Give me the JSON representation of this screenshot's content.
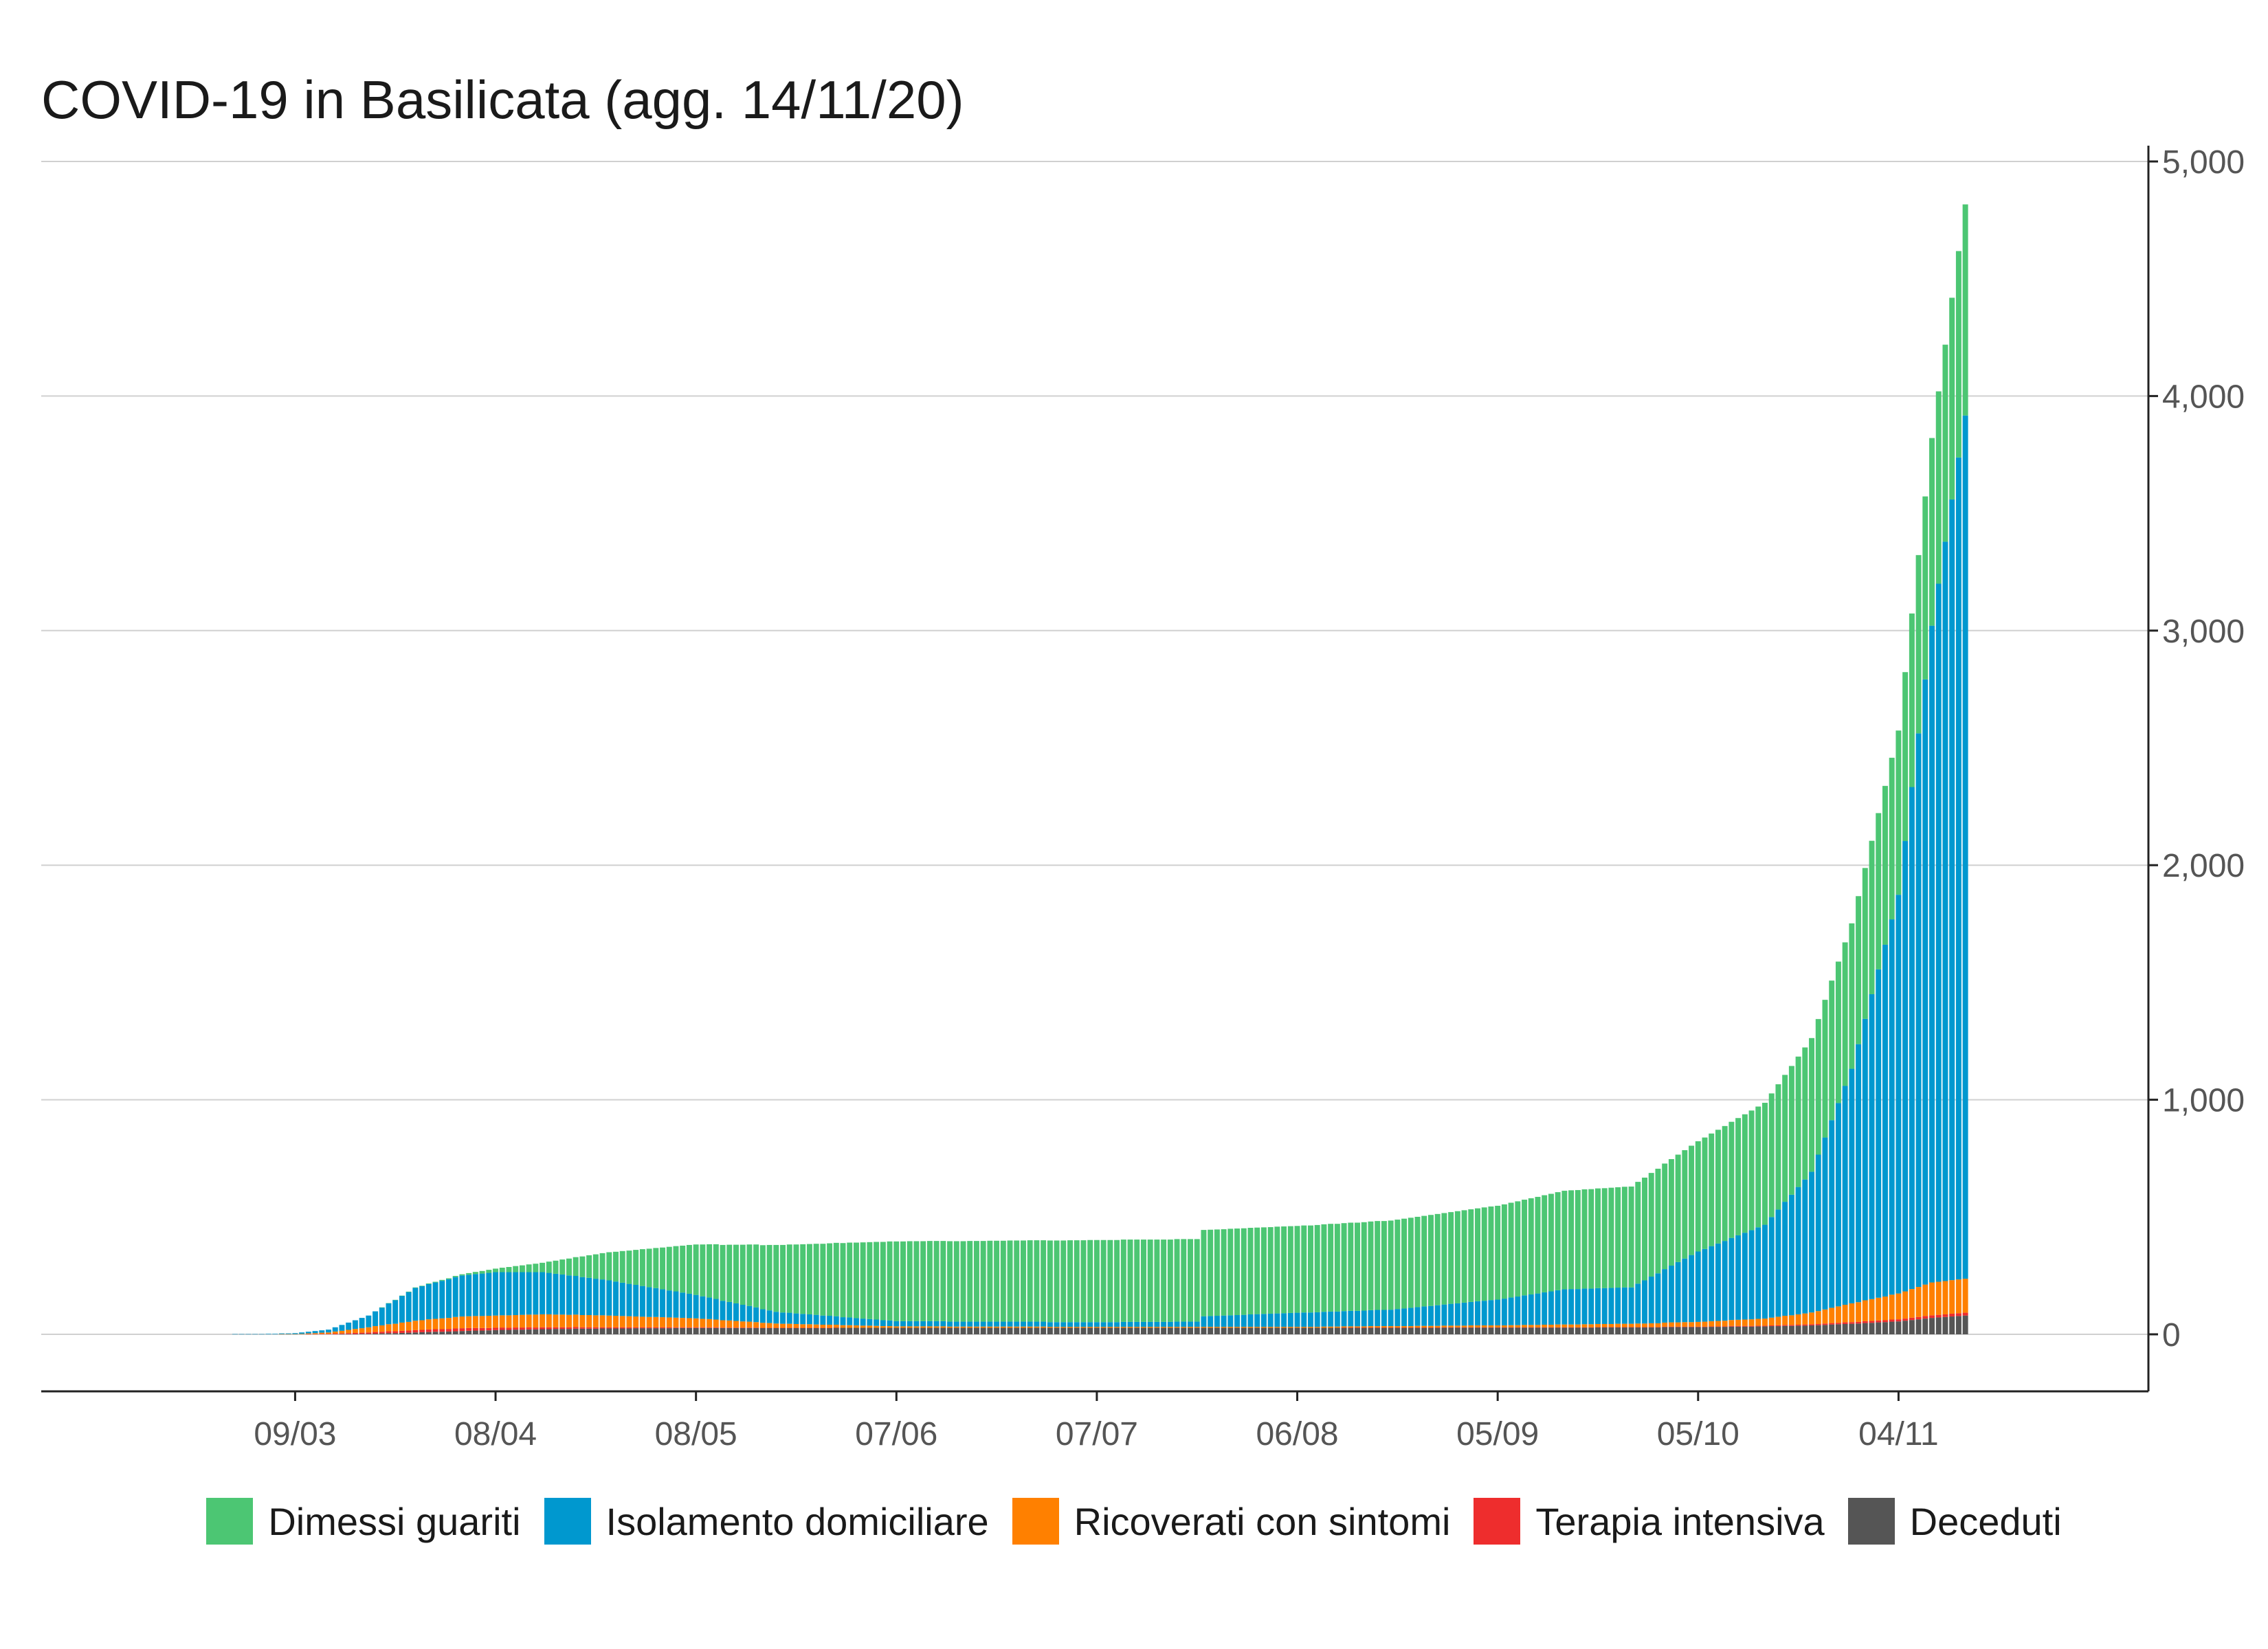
{
  "chart_data": {
    "type": "bar",
    "stacked": true,
    "title": "COVID-19 in Basilicata (agg. 14/11/20)",
    "xlabel": "",
    "ylabel": "",
    "y_axis_position": "right",
    "ylim": [
      0,
      5000
    ],
    "y_ticks": [
      "0",
      "1,000",
      "2,000",
      "3,000",
      "4,000",
      "5,000"
    ],
    "y_tick_values": [
      0,
      1000,
      2000,
      3000,
      4000,
      5000
    ],
    "x_ticks": [
      "09/03",
      "08/04",
      "08/05",
      "07/06",
      "07/07",
      "06/08",
      "05/09",
      "05/10",
      "04/11"
    ],
    "x_tick_dates": [
      "2020-03-09",
      "2020-04-08",
      "2020-05-08",
      "2020-06-07",
      "2020-07-07",
      "2020-08-06",
      "2020-09-05",
      "2020-10-05",
      "2020-11-04"
    ],
    "x_range": [
      "2020-02-18",
      "2020-11-27"
    ],
    "start_date": "2020-02-24",
    "grid": true,
    "legend_position": "bottom",
    "series_order_bottom_to_top": [
      "Deceduti",
      "Terapia intensiva",
      "Ricoverati con sintomi",
      "Isolamento domiciliare",
      "Dimessi guariti"
    ],
    "keyframes": [
      {
        "date": "2020-02-24",
        "deceduti": 0,
        "terapia": 0,
        "ricoverati": 0,
        "isolamento": 0,
        "dimessi": 0
      },
      {
        "date": "2020-03-04",
        "deceduti": 0,
        "terapia": 0,
        "ricoverati": 0,
        "isolamento": 1,
        "dimessi": 0
      },
      {
        "date": "2020-03-09",
        "deceduti": 0,
        "terapia": 0,
        "ricoverati": 1,
        "isolamento": 4,
        "dimessi": 0
      },
      {
        "date": "2020-03-14",
        "deceduti": 0,
        "terapia": 2,
        "ricoverati": 6,
        "isolamento": 12,
        "dimessi": 0
      },
      {
        "date": "2020-03-20",
        "deceduti": 2,
        "terapia": 6,
        "ricoverati": 22,
        "isolamento": 50,
        "dimessi": 0
      },
      {
        "date": "2020-03-27",
        "deceduti": 8,
        "terapia": 10,
        "ricoverati": 40,
        "isolamento": 140,
        "dimessi": 2
      },
      {
        "date": "2020-04-03",
        "deceduti": 14,
        "terapia": 12,
        "ricoverati": 50,
        "isolamento": 175,
        "dimessi": 5
      },
      {
        "date": "2020-04-08",
        "deceduti": 18,
        "terapia": 10,
        "ricoverati": 52,
        "isolamento": 185,
        "dimessi": 15
      },
      {
        "date": "2020-04-15",
        "deceduti": 22,
        "terapia": 8,
        "ricoverati": 55,
        "isolamento": 180,
        "dimessi": 40
      },
      {
        "date": "2020-04-25",
        "deceduti": 25,
        "terapia": 5,
        "ricoverati": 50,
        "isolamento": 150,
        "dimessi": 120
      },
      {
        "date": "2020-05-08",
        "deceduti": 27,
        "terapia": 3,
        "ricoverati": 38,
        "isolamento": 100,
        "dimessi": 215
      },
      {
        "date": "2020-05-20",
        "deceduti": 27,
        "terapia": 1,
        "ricoverati": 18,
        "isolamento": 50,
        "dimessi": 285
      },
      {
        "date": "2020-06-07",
        "deceduti": 28,
        "terapia": 0,
        "ricoverati": 6,
        "isolamento": 22,
        "dimessi": 340
      },
      {
        "date": "2020-07-07",
        "deceduti": 28,
        "terapia": 0,
        "ricoverati": 4,
        "isolamento": 20,
        "dimessi": 350
      },
      {
        "date": "2020-07-22",
        "deceduti": 28,
        "terapia": 0,
        "ricoverati": 4,
        "isolamento": 22,
        "dimessi": 352
      },
      {
        "date": "2020-07-23",
        "deceduti": 28,
        "terapia": 0,
        "ricoverati": 4,
        "isolamento": 45,
        "dimessi": 368
      },
      {
        "date": "2020-08-06",
        "deceduti": 28,
        "terapia": 0,
        "ricoverati": 4,
        "isolamento": 60,
        "dimessi": 370
      },
      {
        "date": "2020-08-20",
        "deceduti": 28,
        "terapia": 1,
        "ricoverati": 6,
        "isolamento": 70,
        "dimessi": 380
      },
      {
        "date": "2020-09-05",
        "deceduti": 29,
        "terapia": 1,
        "ricoverati": 8,
        "isolamento": 110,
        "dimessi": 400
      },
      {
        "date": "2020-09-15",
        "deceduti": 29,
        "terapia": 1,
        "ricoverati": 12,
        "isolamento": 150,
        "dimessi": 420
      },
      {
        "date": "2020-09-25",
        "deceduti": 30,
        "terapia": 1,
        "ricoverati": 14,
        "isolamento": 155,
        "dimessi": 430
      },
      {
        "date": "2020-10-05",
        "deceduti": 31,
        "terapia": 2,
        "ricoverati": 20,
        "isolamento": 300,
        "dimessi": 470
      },
      {
        "date": "2020-10-15",
        "deceduti": 34,
        "terapia": 3,
        "ricoverati": 30,
        "isolamento": 400,
        "dimessi": 520
      },
      {
        "date": "2020-10-22",
        "deceduti": 38,
        "terapia": 5,
        "ricoverati": 50,
        "isolamento": 600,
        "dimessi": 570
      },
      {
        "date": "2020-10-28",
        "deceduti": 45,
        "terapia": 7,
        "ricoverati": 80,
        "isolamento": 1000,
        "dimessi": 620
      },
      {
        "date": "2020-11-04",
        "deceduti": 55,
        "terapia": 9,
        "ricoverati": 110,
        "isolamento": 1700,
        "dimessi": 700
      },
      {
        "date": "2020-11-09",
        "deceduti": 70,
        "terapia": 11,
        "ricoverati": 140,
        "isolamento": 2800,
        "dimessi": 800
      },
      {
        "date": "2020-11-14",
        "deceduti": 80,
        "terapia": 12,
        "ricoverati": 145,
        "isolamento": 3680,
        "dimessi": 900
      }
    ],
    "series": [
      {
        "name": "Dimessi guariti",
        "key": "dimessi",
        "color": "#4cc673"
      },
      {
        "name": "Isolamento domiciliare",
        "key": "isolamento",
        "color": "#0098cf"
      },
      {
        "name": "Ricoverati con sintomi",
        "key": "ricoverati",
        "color": "#ff8000"
      },
      {
        "name": "Terapia intensiva",
        "key": "terapia",
        "color": "#ee2d2d"
      },
      {
        "name": "Deceduti",
        "key": "deceduti",
        "color": "#555555"
      }
    ]
  },
  "style": {
    "grid_color": "#d0d0d0",
    "axis_color": "#222222",
    "tick_label_color": "#555555"
  }
}
